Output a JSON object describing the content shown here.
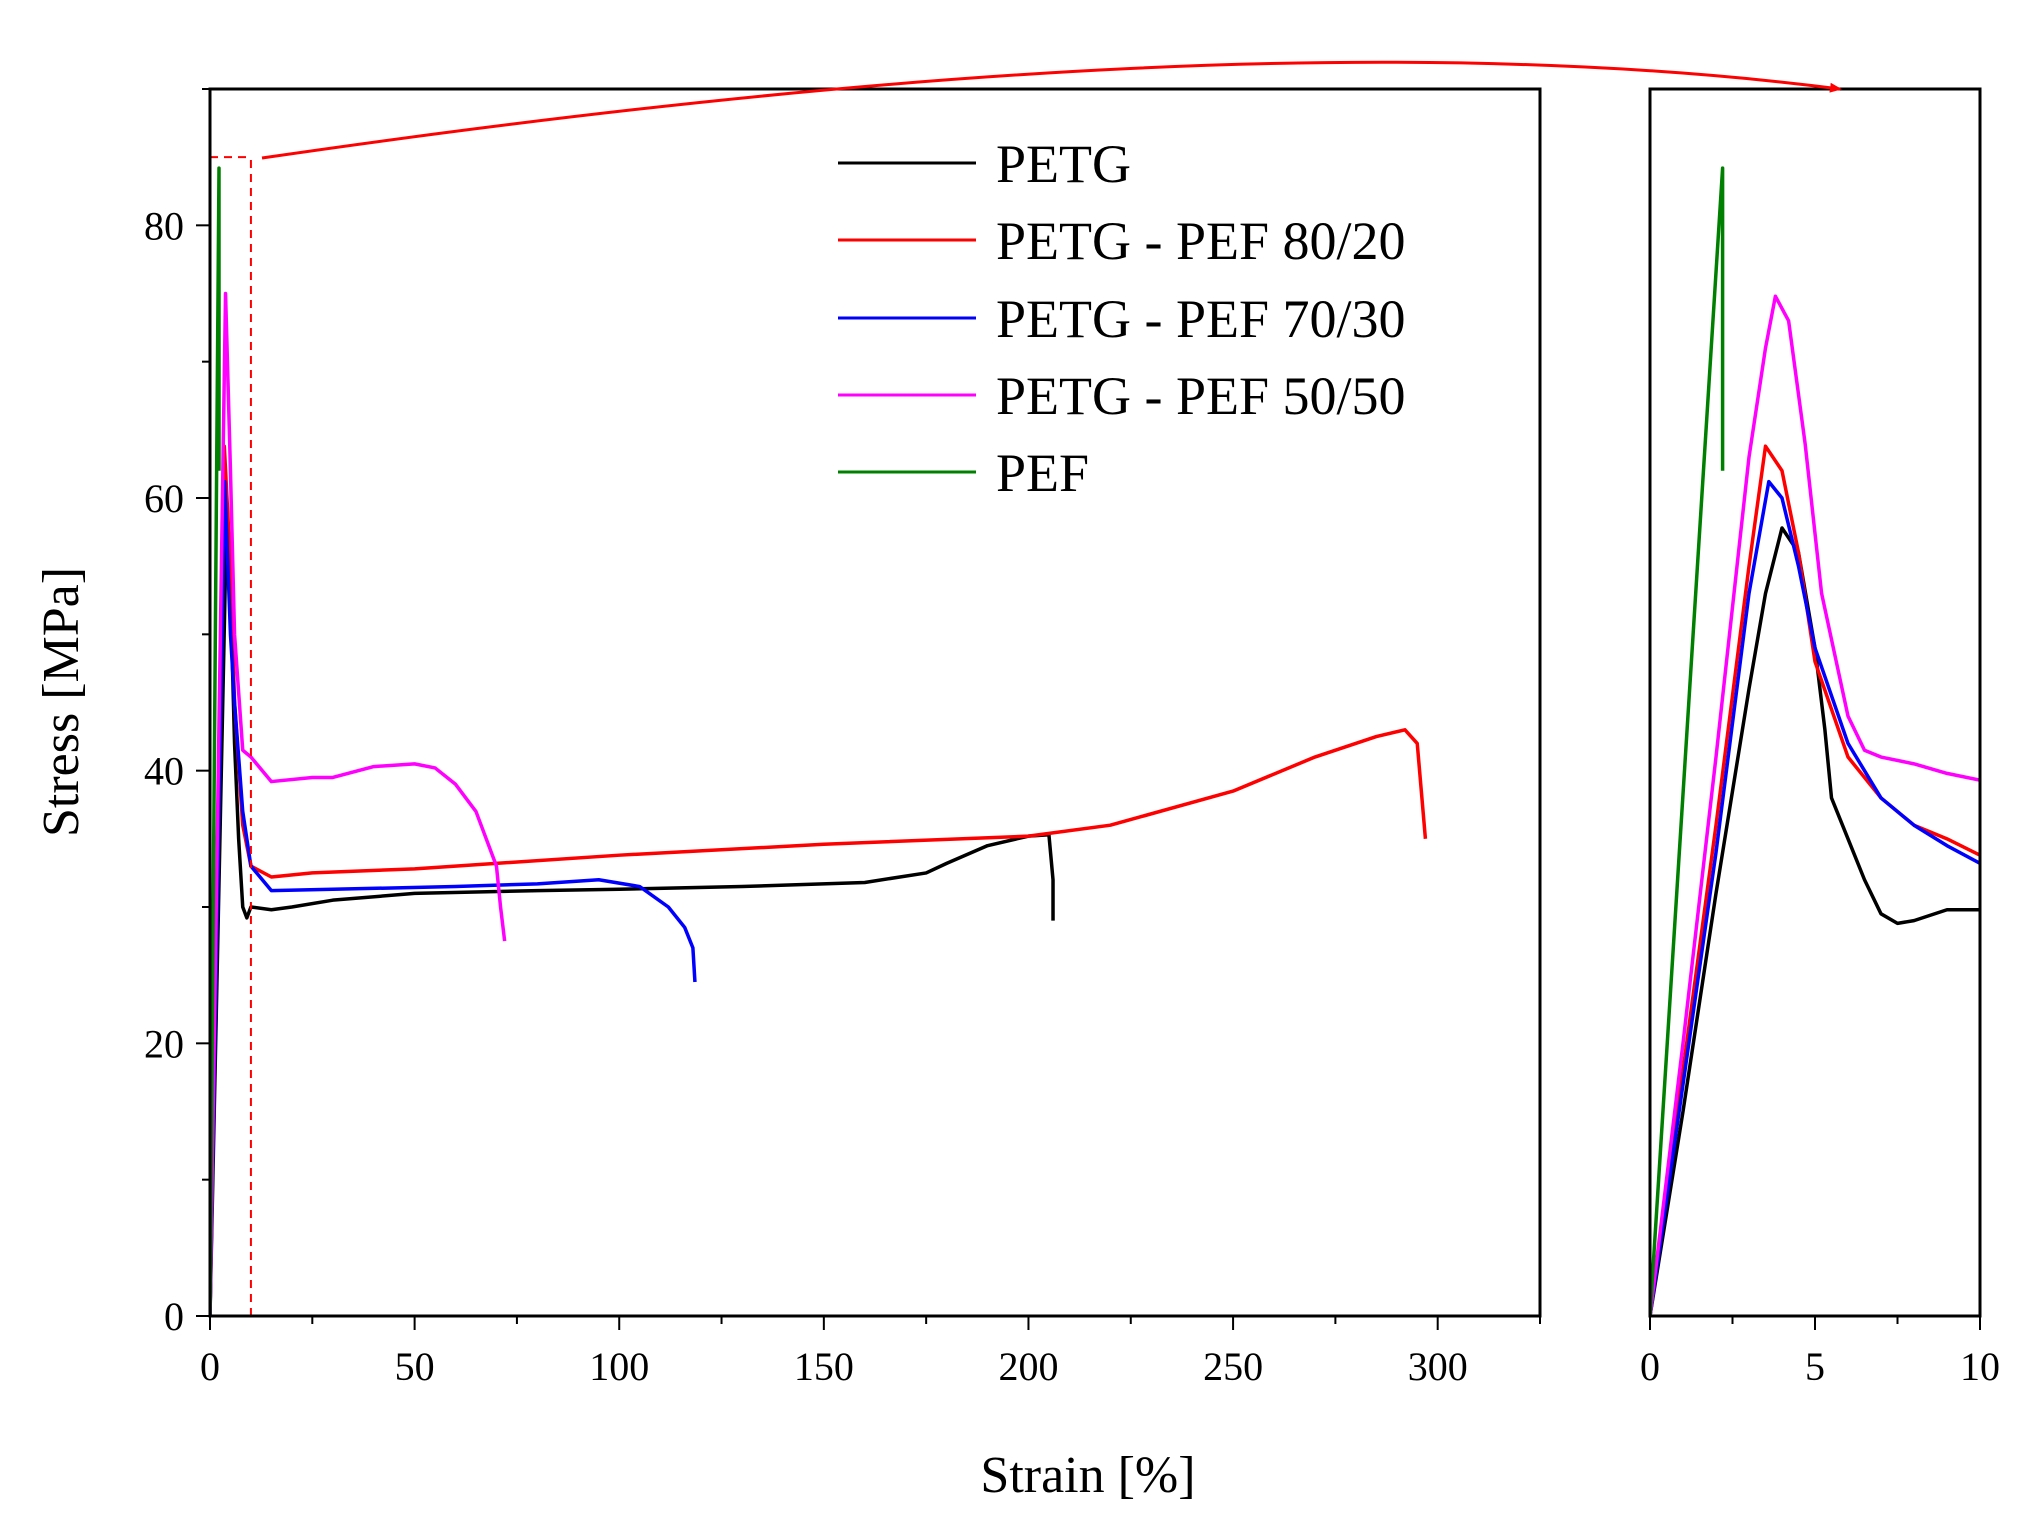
{
  "chart_data": [
    {
      "type": "line",
      "panel": "main",
      "xlabel": "Strain [%]",
      "ylabel": "Stress [MPa]",
      "xlim": [
        0,
        325
      ],
      "ylim": [
        0,
        90
      ],
      "xticks": [
        0,
        50,
        100,
        150,
        200,
        250,
        300
      ],
      "yticks": [
        0,
        20,
        40,
        60,
        80
      ],
      "legend_position": "top-center",
      "zoom_region": {
        "x": [
          0,
          10
        ],
        "y": [
          0,
          85
        ]
      },
      "series": [
        {
          "name": "PETG",
          "color": "#000000",
          "x": [
            0,
            4,
            5,
            6,
            7,
            8,
            9,
            10,
            15,
            20,
            30,
            50,
            80,
            100,
            130,
            160,
            175,
            180,
            190,
            200,
            205,
            206,
            206
          ],
          "y": [
            0,
            57.8,
            53,
            42,
            35,
            30,
            29.2,
            30,
            29.8,
            30,
            30.5,
            31,
            31.2,
            31.3,
            31.5,
            31.8,
            32.5,
            33.2,
            34.5,
            35.2,
            35.3,
            32,
            29
          ]
        },
        {
          "name": "PETG - PEF 80/20",
          "color": "#ff0000",
          "x": [
            0,
            3.5,
            5,
            6,
            8,
            10,
            15,
            25,
            50,
            100,
            150,
            200,
            220,
            250,
            270,
            285,
            292,
            295,
            297
          ],
          "y": [
            0,
            63.8,
            55,
            45,
            36,
            33,
            32.2,
            32.5,
            32.8,
            33.8,
            34.6,
            35.2,
            36,
            38.5,
            41,
            42.5,
            43,
            42,
            35
          ]
        },
        {
          "name": "PETG - PEF 70/30",
          "color": "#0000ff",
          "x": [
            0,
            3.6,
            5,
            6,
            8,
            10,
            15,
            30,
            60,
            80,
            95,
            105,
            112,
            116,
            118,
            118.5
          ],
          "y": [
            0,
            61.2,
            50,
            45,
            37,
            33,
            31.2,
            31.3,
            31.5,
            31.7,
            32,
            31.5,
            30,
            28.5,
            27,
            24.5
          ]
        },
        {
          "name": "PETG - PEF 50/50",
          "color": "#ff00ff",
          "x": [
            0,
            3.8,
            5,
            6,
            8,
            10,
            15,
            25,
            30,
            40,
            50,
            55,
            60,
            65,
            70,
            71,
            72
          ],
          "y": [
            0,
            75,
            62,
            50,
            41.5,
            41,
            39.2,
            39.5,
            39.5,
            40.3,
            40.5,
            40.2,
            39,
            37,
            33,
            30,
            27.5
          ]
        },
        {
          "name": "PEF",
          "color": "#008000",
          "x": [
            0,
            2.2,
            2.2
          ],
          "y": [
            0,
            84.2,
            62
          ]
        }
      ]
    },
    {
      "type": "line",
      "panel": "inset",
      "xlim": [
        0,
        10
      ],
      "ylim": [
        0,
        90
      ],
      "xticks": [
        0,
        5,
        10
      ],
      "series": [
        {
          "color": "#000000",
          "x": [
            0,
            1,
            2,
            3,
            3.5,
            4,
            4.5,
            5,
            5.3,
            5.5,
            6,
            6.5,
            7,
            7.5,
            8,
            9,
            10
          ],
          "y": [
            0,
            15,
            31,
            46,
            53,
            57.8,
            56,
            49,
            43,
            38,
            35,
            32,
            29.5,
            28.8,
            29,
            29.8,
            29.8
          ]
        },
        {
          "color": "#ff0000",
          "x": [
            0,
            1,
            2,
            3,
            3.5,
            4,
            4.5,
            5,
            6,
            7,
            8,
            9,
            10
          ],
          "y": [
            0,
            18,
            36,
            55,
            63.8,
            62,
            56,
            48,
            41,
            38,
            36,
            35,
            33.8
          ]
        },
        {
          "color": "#0000ff",
          "x": [
            0,
            1,
            2,
            3,
            3.6,
            4,
            4.5,
            5,
            6,
            7,
            8,
            9,
            10
          ],
          "y": [
            0,
            17,
            34,
            53,
            61.2,
            60,
            55,
            49,
            42,
            38,
            36,
            34.5,
            33.2
          ]
        },
        {
          "color": "#ff00ff",
          "x": [
            0,
            1,
            2,
            3,
            3.5,
            3.8,
            4.2,
            4.7,
            5.2,
            6,
            6.5,
            7,
            8,
            9,
            10
          ],
          "y": [
            0,
            20,
            41,
            63,
            71,
            74.8,
            73,
            64,
            53,
            44,
            41.5,
            41,
            40.5,
            39.8,
            39.3
          ]
        },
        {
          "color": "#008000",
          "x": [
            0,
            2.2,
            2.2
          ],
          "y": [
            0,
            84.2,
            62
          ]
        }
      ]
    }
  ]
}
